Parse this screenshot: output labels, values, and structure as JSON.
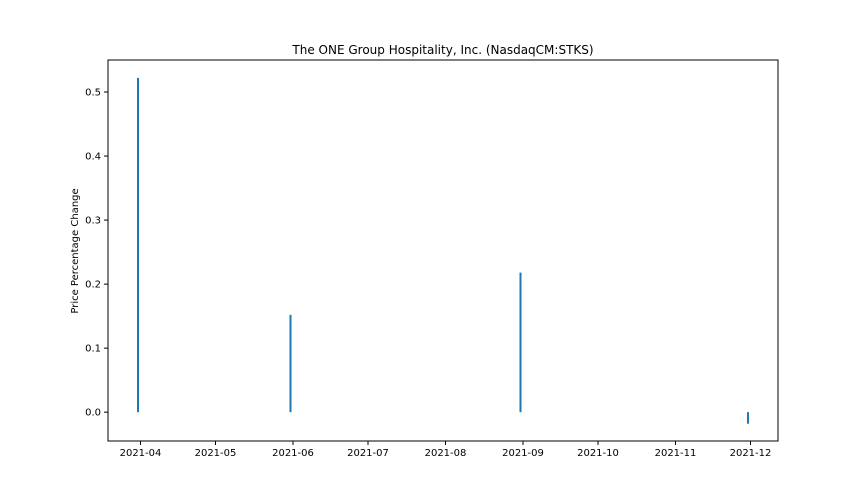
{
  "chart_data": {
    "type": "bar",
    "title": "The ONE Group Hospitality, Inc. (NasdaqCM:STKS)",
    "xlabel": "",
    "ylabel": "Price Percentage Change",
    "x": [
      "2021-03-31",
      "2021-05-31",
      "2021-08-31",
      "2021-11-30"
    ],
    "values": [
      0.522,
      0.152,
      0.218,
      -0.018
    ],
    "xlim": [
      "2021-03-19",
      "2021-12-12"
    ],
    "ylim": [
      -0.045,
      0.55
    ],
    "x_ticks": [
      "2021-04",
      "2021-05",
      "2021-06",
      "2021-07",
      "2021-08",
      "2021-09",
      "2021-10",
      "2021-11",
      "2021-12"
    ],
    "x_tick_dates": [
      "2021-04-01",
      "2021-05-01",
      "2021-06-01",
      "2021-07-01",
      "2021-08-01",
      "2021-09-01",
      "2021-10-01",
      "2021-11-01",
      "2021-12-01"
    ],
    "y_ticks": [
      0.0,
      0.1,
      0.2,
      0.3,
      0.4,
      0.5
    ],
    "y_tick_labels": [
      "0.0",
      "0.1",
      "0.2",
      "0.3",
      "0.4",
      "0.5"
    ],
    "bar_color": "#1f77b4",
    "grid": false,
    "legend": "none"
  }
}
